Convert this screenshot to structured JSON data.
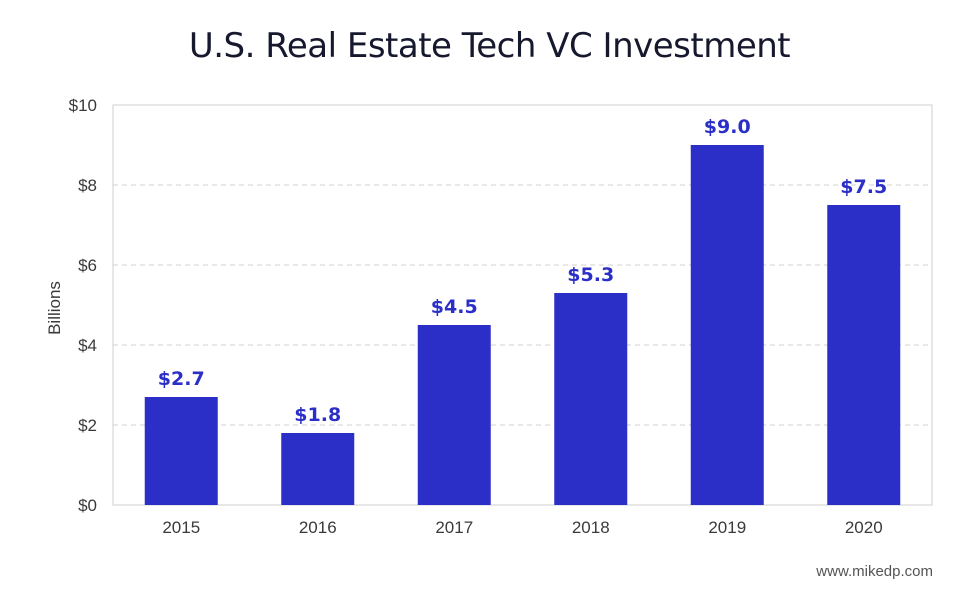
{
  "chart_data": {
    "type": "bar",
    "title": "U.S. Real Estate Tech VC Investment",
    "ylabel": "Billions",
    "xlabel": "",
    "categories": [
      "2015",
      "2016",
      "2017",
      "2018",
      "2019",
      "2020"
    ],
    "values": [
      2.7,
      1.8,
      4.5,
      5.3,
      9.0,
      7.5
    ],
    "data_labels": [
      "$2.7",
      "$1.8",
      "$4.5",
      "$5.3",
      "$9.0",
      "$7.5"
    ],
    "ylim": [
      0,
      10
    ],
    "y_ticks": [
      0,
      2,
      4,
      6,
      8,
      10
    ],
    "y_tick_labels": [
      "$0",
      "$2",
      "$4",
      "$6",
      "$8",
      "$10"
    ],
    "grid": true,
    "legend": "none"
  },
  "colors": {
    "bar": "#2b2fc7",
    "data_label": "#2b2fc7",
    "grid": "#d0d0d0",
    "frame": "#cfcfcf"
  },
  "source": "www.mikedp.com"
}
